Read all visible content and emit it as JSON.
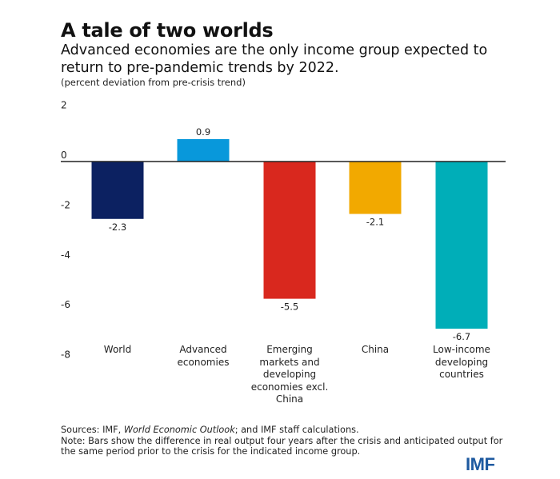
{
  "header": {
    "title": "A tale of two worlds",
    "subtitle": "Advanced economies are the only income group expected to return to pre-pandemic trends by 2022.",
    "units": "(percent deviation from pre-crisis trend)"
  },
  "chart_data": {
    "type": "bar",
    "title": "A tale of two worlds",
    "subtitle": "Advanced economies are the only income group expected to return to pre-pandemic trends by 2022.",
    "ylabel": "(percent deviation from pre-crisis trend)",
    "xlabel": "",
    "categories": [
      "World",
      "Advanced economies",
      "Emerging markets and developing economies excl. China",
      "China",
      "Low-income developing countries"
    ],
    "category_lines": [
      [
        "World"
      ],
      [
        "Advanced",
        "economies"
      ],
      [
        "Emerging",
        "markets and",
        "developing",
        "economies excl.",
        "China"
      ],
      [
        "China"
      ],
      [
        "Low-income",
        "developing",
        "countries"
      ]
    ],
    "values": [
      -2.3,
      0.9,
      -5.5,
      -2.1,
      -6.7
    ],
    "value_labels": [
      "-2.3",
      "0.9",
      "-5.5",
      "-2.1",
      "-6.7"
    ],
    "colors": [
      "#0c2161",
      "#0898db",
      "#d9281e",
      "#f2a900",
      "#00aeb8"
    ],
    "ylim": [
      -8,
      2
    ],
    "yticks": [
      2,
      0,
      -2,
      -4,
      -6,
      -8
    ],
    "grid": false,
    "legend": "none",
    "zero_line_color": "#222222"
  },
  "footer": {
    "sources_prefix": "Sources: IMF, ",
    "sources_italic": "World Economic Outlook",
    "sources_suffix": "; and IMF staff calculations.",
    "note": "Note: Bars show the difference in real output four years after the crisis and anticipated output for the same period prior to the crisis for the indicated income group."
  },
  "brand": {
    "logo_text": "IMF",
    "logo_color": "#1e5aa0"
  }
}
